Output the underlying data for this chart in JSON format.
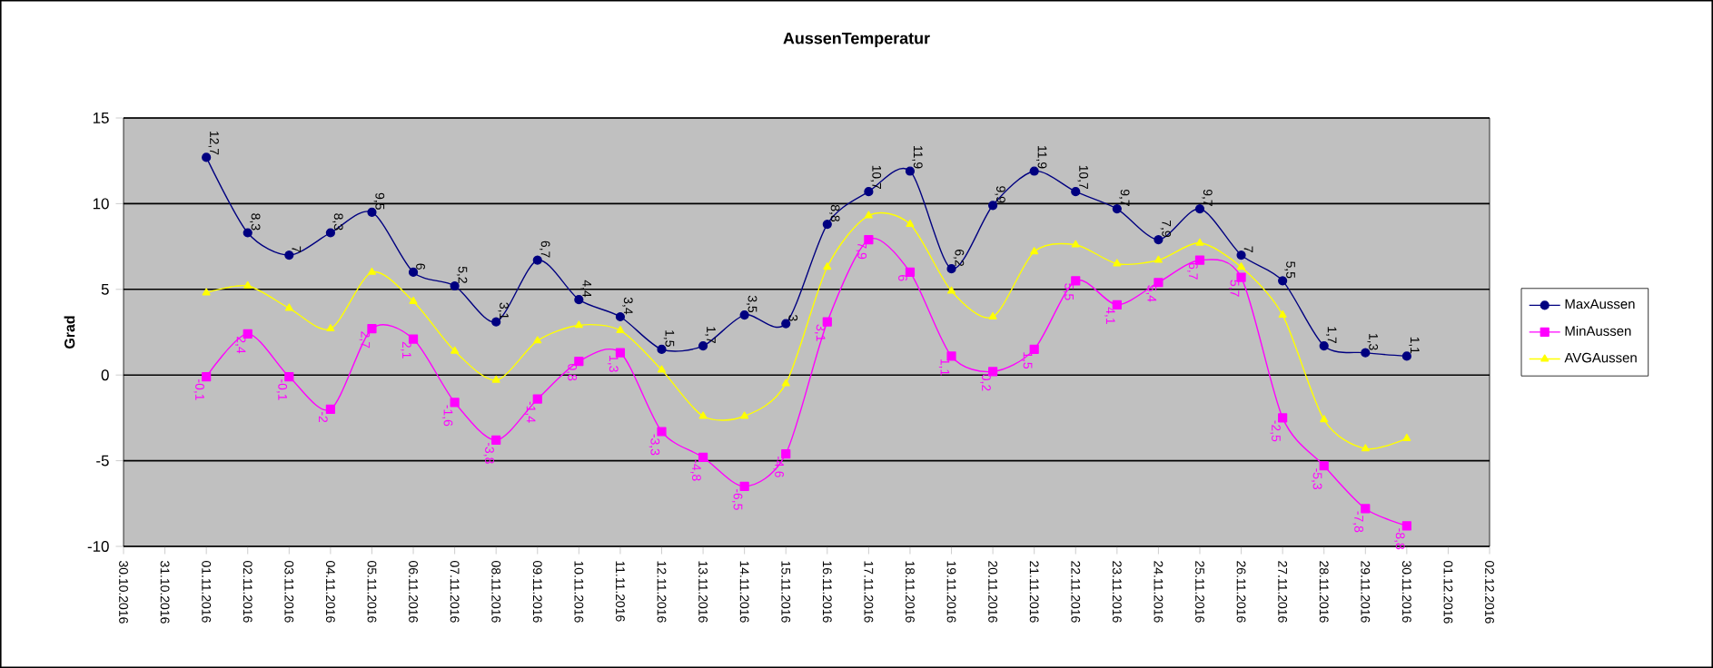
{
  "chart_data": {
    "type": "line",
    "title": "AussenTemperatur",
    "ylabel": "Grad",
    "categories": [
      "30.10.2016",
      "31.10.2016",
      "01.11.2016",
      "02.11.2016",
      "03.11.2016",
      "04.11.2016",
      "05.11.2016",
      "06.11.2016",
      "07.11.2016",
      "08.11.2016",
      "09.11.2016",
      "10.11.2016",
      "11.11.2016",
      "12.11.2016",
      "13.11.2016",
      "14.11.2016",
      "15.11.2016",
      "16.11.2016",
      "17.11.2016",
      "18.11.2016",
      "19.11.2016",
      "20.11.2016",
      "21.11.2016",
      "22.11.2016",
      "23.11.2016",
      "24.11.2016",
      "25.11.2016",
      "26.11.2016",
      "27.11.2016",
      "28.11.2016",
      "29.11.2016",
      "30.11.2016",
      "01.12.2016",
      "02.12.2016"
    ],
    "series": [
      {
        "name": "MaxAussen",
        "color": "#000080",
        "marker": "circle",
        "values": [
          null,
          null,
          12.7,
          8.3,
          7,
          8.3,
          9.5,
          6,
          5.2,
          3.1,
          6.7,
          4.4,
          3.4,
          1.5,
          1.7,
          3.5,
          3,
          8.8,
          10.7,
          11.9,
          6.2,
          9.9,
          11.9,
          10.7,
          9.7,
          7.9,
          9.7,
          7,
          5.5,
          1.7,
          1.3,
          1.1,
          null,
          null
        ],
        "value_labels": [
          null,
          null,
          "12,7",
          "8,3",
          "7",
          "8,3",
          "9,5",
          "6",
          "5,2",
          "3,1",
          "6,7",
          "4,4",
          "3,4",
          "1,5",
          "1,7",
          "3,5",
          "3",
          "8,8",
          "10,7",
          "11,9",
          "6,2",
          "9,9",
          "11,9",
          "10,7",
          "9,7",
          "7,9",
          "9,7",
          "7",
          "5,5",
          "1,7",
          "1,3",
          "1,1",
          null,
          null
        ]
      },
      {
        "name": "MinAussen",
        "color": "#ff00ff",
        "marker": "square",
        "values": [
          null,
          null,
          -0.1,
          2.4,
          -0.1,
          -2,
          2.7,
          2.1,
          -1.6,
          -3.8,
          -1.4,
          0.8,
          1.3,
          -3.3,
          -4.8,
          -6.5,
          -4.6,
          3.1,
          7.9,
          6,
          1.1,
          0.2,
          1.5,
          5.5,
          4.1,
          5.4,
          6.7,
          5.7,
          -2.5,
          -5.3,
          -7.8,
          -8.8,
          null,
          null
        ],
        "value_labels": [
          null,
          null,
          "-0,1",
          "2,4",
          "-0,1",
          "-2",
          "2,7",
          "2,1",
          "-1,6",
          "-3,8",
          "-1,4",
          "0,8",
          "1,3",
          "-3,3",
          "-4,8",
          "-6,5",
          "-4,6",
          "3,1",
          "7,9",
          "6",
          "1,1",
          "0,2",
          "1,5",
          "5,5",
          "4,1",
          "5,4",
          "6,7",
          "5,7",
          "-2,5",
          "-5,3",
          "-7,8",
          "-8,8",
          null,
          null
        ]
      },
      {
        "name": "AVGAussen",
        "color": "#ffff00",
        "marker": "triangle",
        "values": [
          null,
          null,
          4.8,
          5.2,
          3.9,
          2.7,
          6.0,
          4.3,
          1.4,
          -0.3,
          2.0,
          2.9,
          2.6,
          0.3,
          -2.4,
          -2.4,
          -0.5,
          6.3,
          9.3,
          8.8,
          4.9,
          3.4,
          7.2,
          7.6,
          6.5,
          6.7,
          7.7,
          6.3,
          3.5,
          -2.6,
          -4.3,
          -3.7,
          null,
          null
        ]
      }
    ],
    "ylim": [
      -10,
      15
    ],
    "yticks": [
      -10,
      -5,
      0,
      5,
      10,
      15
    ],
    "grid": "y",
    "legend": "right"
  }
}
